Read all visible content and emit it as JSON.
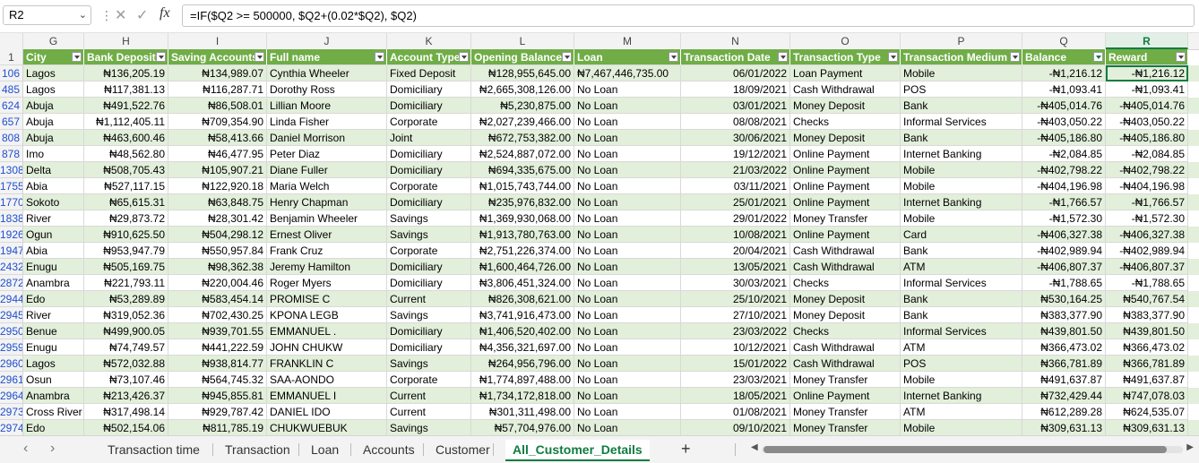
{
  "formula_bar": {
    "name_box": "R2",
    "formula": "=IF($Q2 >= 500000, $Q2+(0.02*$Q2), $Q2)",
    "fx": "fx"
  },
  "columns": [
    "G",
    "H",
    "I",
    "J",
    "K",
    "L",
    "M",
    "N",
    "O",
    "P",
    "Q",
    "R"
  ],
  "header_row_number": "1",
  "headers": [
    "City",
    "Bank Deposit",
    "Saving Accounts",
    "Full name",
    "Account Type",
    "Opening Balance",
    "Loan",
    "Transaction Date",
    "Transaction Type",
    "Transaction Medium",
    "Balance",
    "Reward"
  ],
  "rows": [
    [
      "106",
      "Lagos",
      "₦136,205.19",
      "₦134,989.07",
      "Cynthia Wheeler",
      "Fixed Deposit",
      "₦128,955,645.00",
      "₦7,467,446,735.00",
      "06/01/2022",
      "Loan Payment",
      "Mobile",
      "-₦1,216.12",
      "-₦1,216.12"
    ],
    [
      "485",
      "Lagos",
      "₦117,381.13",
      "₦116,287.71",
      "Dorothy Ross",
      "Domiciliary",
      "₦2,665,308,126.00",
      "No Loan",
      "18/09/2021",
      "Cash Withdrawal",
      "POS",
      "-₦1,093.41",
      "-₦1,093.41"
    ],
    [
      "624",
      "Abuja",
      "₦491,522.76",
      "₦86,508.01",
      "Lillian Moore",
      "Domiciliary",
      "₦5,230,875.00",
      "No Loan",
      "03/01/2021",
      "Money Deposit",
      "Bank",
      "-₦405,014.76",
      "-₦405,014.76"
    ],
    [
      "657",
      "Abuja",
      "₦1,112,405.11",
      "₦709,354.90",
      "Linda Fisher",
      "Corporate",
      "₦2,027,239,466.00",
      "No Loan",
      "08/08/2021",
      "Checks",
      "Informal Services",
      "-₦403,050.22",
      "-₦403,050.22"
    ],
    [
      "808",
      "Abuja",
      "₦463,600.46",
      "₦58,413.66",
      "Daniel Morrison",
      "Joint",
      "₦672,753,382.00",
      "No Loan",
      "30/06/2021",
      "Money Deposit",
      "Bank",
      "-₦405,186.80",
      "-₦405,186.80"
    ],
    [
      "878",
      "Imo",
      "₦48,562.80",
      "₦46,477.95",
      "Peter Diaz",
      "Domiciliary",
      "₦2,524,887,072.00",
      "No Loan",
      "19/12/2021",
      "Online Payment",
      "Internet Banking",
      "-₦2,084.85",
      "-₦2,084.85"
    ],
    [
      "1308",
      "Delta",
      "₦508,705.43",
      "₦105,907.21",
      "Diane Fuller",
      "Domiciliary",
      "₦694,335,675.00",
      "No Loan",
      "21/03/2022",
      "Online Payment",
      "Mobile",
      "-₦402,798.22",
      "-₦402,798.22"
    ],
    [
      "1755",
      "Abia",
      "₦527,117.15",
      "₦122,920.18",
      "Maria Welch",
      "Corporate",
      "₦1,015,743,744.00",
      "No Loan",
      "03/11/2021",
      "Online Payment",
      "Mobile",
      "-₦404,196.98",
      "-₦404,196.98"
    ],
    [
      "1770",
      "Sokoto",
      "₦65,615.31",
      "₦63,848.75",
      "Henry Chapman",
      "Domiciliary",
      "₦235,976,832.00",
      "No Loan",
      "25/01/2021",
      "Online Payment",
      "Internet Banking",
      "-₦1,766.57",
      "-₦1,766.57"
    ],
    [
      "1838",
      "River",
      "₦29,873.72",
      "₦28,301.42",
      "Benjamin Wheeler",
      "Savings",
      "₦1,369,930,068.00",
      "No Loan",
      "29/01/2022",
      "Money Transfer",
      "Mobile",
      "-₦1,572.30",
      "-₦1,572.30"
    ],
    [
      "1926",
      "Ogun",
      "₦910,625.50",
      "₦504,298.12",
      "Ernest Oliver",
      "Savings",
      "₦1,913,780,763.00",
      "No Loan",
      "10/08/2021",
      "Online Payment",
      "Card",
      "-₦406,327.38",
      "-₦406,327.38"
    ],
    [
      "1947",
      "Abia",
      "₦953,947.79",
      "₦550,957.84",
      "Frank Cruz",
      "Corporate",
      "₦2,751,226,374.00",
      "No Loan",
      "20/04/2021",
      "Cash Withdrawal",
      "Bank",
      "-₦402,989.94",
      "-₦402,989.94"
    ],
    [
      "2432",
      "Enugu",
      "₦505,169.75",
      "₦98,362.38",
      "Jeremy Hamilton",
      "Domiciliary",
      "₦1,600,464,726.00",
      "No Loan",
      "13/05/2021",
      "Cash Withdrawal",
      "ATM",
      "-₦406,807.37",
      "-₦406,807.37"
    ],
    [
      "2872",
      "Anambra",
      "₦221,793.11",
      "₦220,004.46",
      "Roger Myers",
      "Domiciliary",
      "₦3,806,451,324.00",
      "No Loan",
      "30/03/2021",
      "Checks",
      "Informal Services",
      "-₦1,788.65",
      "-₦1,788.65"
    ],
    [
      "2944",
      "Edo",
      "₦53,289.89",
      "₦583,454.14",
      "PROMISE  C",
      "Current",
      "₦826,308,621.00",
      "No Loan",
      "25/10/2021",
      "Money Deposit",
      "Bank",
      "₦530,164.25",
      "₦540,767.54"
    ],
    [
      "2945",
      "River",
      "₦319,052.36",
      "₦702,430.25",
      "KPONA LEGB",
      "Savings",
      "₦3,741,916,473.00",
      "No Loan",
      "27/10/2021",
      "Money Deposit",
      "Bank",
      "₦383,377.90",
      "₦383,377.90"
    ],
    [
      "2950",
      "Benue",
      "₦499,900.05",
      "₦939,701.55",
      "EMMANUEL .",
      "Domiciliary",
      "₦1,406,520,402.00",
      "No Loan",
      "23/03/2022",
      "Checks",
      "Informal Services",
      "₦439,801.50",
      "₦439,801.50"
    ],
    [
      "2959",
      "Enugu",
      "₦74,749.57",
      "₦441,222.59",
      "JOHN CHUKW",
      "Domiciliary",
      "₦4,356,321,697.00",
      "No Loan",
      "10/12/2021",
      "Cash Withdrawal",
      "ATM",
      "₦366,473.02",
      "₦366,473.02"
    ],
    [
      "2960",
      "Lagos",
      "₦572,032.88",
      "₦938,814.77",
      "FRANKLIN C",
      "Savings",
      "₦264,956,796.00",
      "No Loan",
      "15/01/2022",
      "Cash Withdrawal",
      "POS",
      "₦366,781.89",
      "₦366,781.89"
    ],
    [
      "2961",
      "Osun",
      "₦73,107.46",
      "₦564,745.32",
      "SAA-AONDO",
      "Corporate",
      "₦1,774,897,488.00",
      "No Loan",
      "23/03/2021",
      "Money Transfer",
      "Mobile",
      "₦491,637.87",
      "₦491,637.87"
    ],
    [
      "2964",
      "Anambra",
      "₦213,426.37",
      "₦945,855.81",
      "EMMANUEL I",
      "Current",
      "₦1,734,172,818.00",
      "No Loan",
      "18/05/2021",
      "Online Payment",
      "Internet Banking",
      "₦732,429.44",
      "₦747,078.03"
    ],
    [
      "2973",
      "Cross River",
      "₦317,498.14",
      "₦929,787.42",
      "DANIEL IDO",
      "Current",
      "₦301,311,498.00",
      "No Loan",
      "01/08/2021",
      "Money Transfer",
      "ATM",
      "₦612,289.28",
      "₦624,535.07"
    ],
    [
      "2974",
      "Edo",
      "₦502,154.06",
      "₦811,785.19",
      "CHUKWUEBUK",
      "Savings",
      "₦57,704,976.00",
      "No Loan",
      "09/10/2021",
      "Money Transfer",
      "Mobile",
      "₦309,631.13",
      "₦309,631.13"
    ]
  ],
  "sheet_tabs": [
    "Transaction time",
    "Transaction",
    "Loan",
    "Accounts",
    "Customer",
    "All_Customer_Details"
  ],
  "active_tab": "All_Customer_Details",
  "add_sheet": "+",
  "colors": {
    "header_fill": "#70ad47",
    "band_fill": "#e2efda",
    "accent": "#107c41"
  }
}
